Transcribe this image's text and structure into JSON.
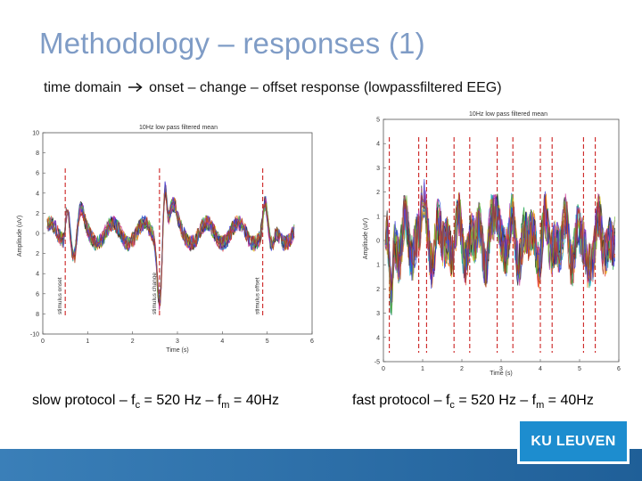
{
  "slide": {
    "title": "Methodology – responses (1)",
    "subtitle_before": "time domain",
    "subtitle_after": "onset – change – offset response (lowpassfiltered EEG)"
  },
  "captions": {
    "left": {
      "before": "slow protocol – f",
      "sub1": "c",
      "mid": " = 520 Hz – f",
      "sub2": "m",
      "after": " = 40Hz"
    },
    "right": {
      "before": "fast protocol – f",
      "sub1": "c",
      "mid": " = 520 Hz – f",
      "sub2": "m",
      "after": " = 40Hz"
    }
  },
  "logo_text": "KU LEUVEN",
  "colors": {
    "title": "#7f9cc6",
    "marker": "#cc2222",
    "bar": "#2d6fa8",
    "logo": "#1d8dcf"
  },
  "chart_data": [
    {
      "type": "line",
      "title": "10Hz low pass filtered mean",
      "xlabel": "Time (s)",
      "ylabel": "Amplitude (uV)",
      "xlim": [
        0,
        6
      ],
      "ylim": [
        -10,
        10
      ],
      "xticks": [
        "0",
        "1",
        "2",
        "3",
        "4",
        "5",
        "6"
      ],
      "yticks": [
        "-10",
        "8",
        "6",
        "4",
        "2",
        "0",
        "2",
        "4",
        "6",
        "8",
        "10"
      ],
      "markers": [
        {
          "x": 0.5,
          "label": "stimulus onset"
        },
        {
          "x": 2.6,
          "label": "stimulus change"
        },
        {
          "x": 4.9,
          "label": "stimulus offset"
        }
      ],
      "series_count": 12
    },
    {
      "type": "line",
      "title": "10Hz low pass filtered mean",
      "xlabel": "Time (s)",
      "ylabel": "Amplitude (uV)",
      "xlim": [
        0,
        6
      ],
      "ylim": [
        -5,
        5
      ],
      "xticks": [
        "0",
        "1",
        "2",
        "3",
        "4",
        "5",
        "6"
      ],
      "yticks": [
        "-5",
        "4",
        "3",
        "2",
        "1",
        "0",
        "1",
        "2",
        "3",
        "4",
        "5"
      ],
      "markers": [
        {
          "x": 0.15
        },
        {
          "x": 0.9
        },
        {
          "x": 1.1
        },
        {
          "x": 1.8
        },
        {
          "x": 2.2
        },
        {
          "x": 2.9
        },
        {
          "x": 3.3
        },
        {
          "x": 4.0
        },
        {
          "x": 4.3
        },
        {
          "x": 5.1
        },
        {
          "x": 5.4
        }
      ],
      "series_count": 12
    }
  ]
}
